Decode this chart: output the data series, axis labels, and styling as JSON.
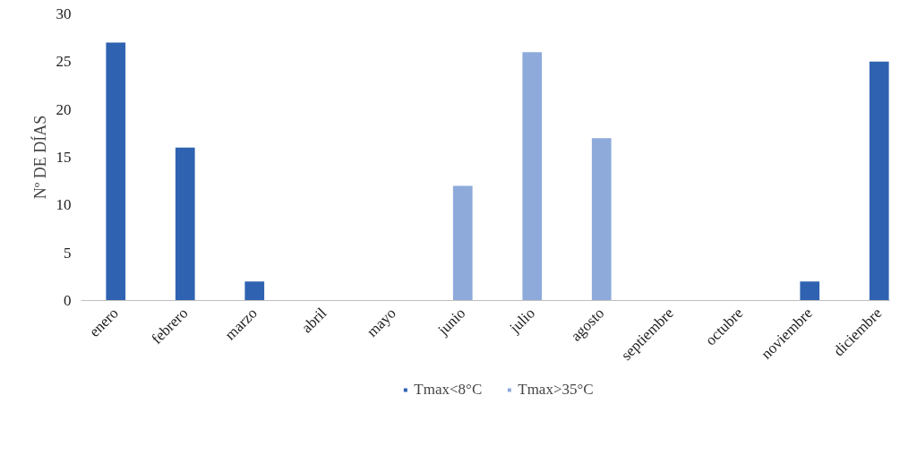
{
  "chart_data": {
    "type": "bar",
    "ylabel": "Nº DE DÍAS",
    "categories": [
      "enero",
      "febrero",
      "marzo",
      "abril",
      "mayo",
      "junio",
      "julio",
      "agosto",
      "septiembre",
      "octubre",
      "noviembre",
      "diciembre"
    ],
    "series": [
      {
        "name": "Tmax<8°C",
        "color": "#2f63b1",
        "values": [
          27,
          16,
          2,
          null,
          null,
          null,
          null,
          null,
          null,
          null,
          2,
          25
        ]
      },
      {
        "name": "Tmax>35°C",
        "color": "#8eaadb",
        "values": [
          null,
          null,
          null,
          null,
          null,
          12,
          26,
          17,
          null,
          null,
          null,
          null
        ]
      }
    ],
    "ylim": [
      0,
      30
    ],
    "yticks": [
      0,
      5,
      10,
      15,
      20,
      25,
      30
    ],
    "grid": false,
    "legend": "bottom"
  }
}
